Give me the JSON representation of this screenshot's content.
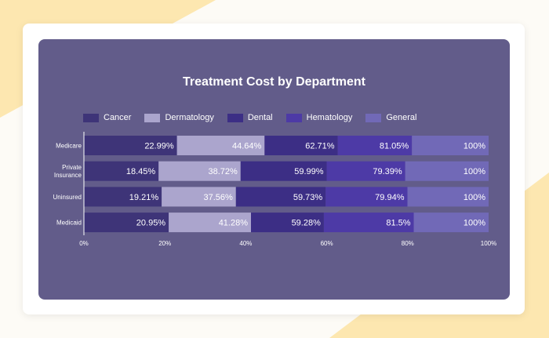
{
  "chart_data": {
    "type": "bar",
    "orientation": "horizontal",
    "stacked": true,
    "title": "Treatment Cost by Department",
    "xlabel": "",
    "ylabel": "",
    "xlim": [
      0,
      100
    ],
    "grid": false,
    "legend_position": "top",
    "categories": [
      [
        "Medicare"
      ],
      [
        "Private",
        "Insurance"
      ],
      [
        "Uninsured"
      ],
      [
        "Medicaid"
      ]
    ],
    "x_ticks": [
      "0%",
      "20%",
      "40%",
      "60%",
      "80%",
      "100%"
    ],
    "series": [
      {
        "name": "Cancer",
        "color": "#3e3478",
        "values": [
          22.99,
          18.45,
          19.21,
          20.95
        ],
        "labels": [
          "22.99%",
          "18.45%",
          "19.21%",
          "20.95%"
        ]
      },
      {
        "name": "Dermatology",
        "color": "#aba5cd",
        "values": [
          21.65,
          20.27,
          18.35,
          20.33
        ],
        "labels": [
          "44.64%",
          "38.72%",
          "37.56%",
          "41.28%"
        ]
      },
      {
        "name": "Dental",
        "color": "#3c2e85",
        "values": [
          18.07,
          21.27,
          22.17,
          18.0
        ],
        "labels": [
          "62.71%",
          "59.99%",
          "59.73%",
          "59.28%"
        ]
      },
      {
        "name": "Hematology",
        "color": "#4d3aa6",
        "values": [
          18.34,
          19.4,
          20.21,
          22.22
        ],
        "labels": [
          "81.05%",
          "79.39%",
          "79.94%",
          "81.5%"
        ]
      },
      {
        "name": "General",
        "color": "#7169b7",
        "values": [
          18.95,
          20.61,
          20.06,
          18.5
        ],
        "labels": [
          "100%",
          "100%",
          "100%",
          "100%"
        ]
      }
    ]
  }
}
